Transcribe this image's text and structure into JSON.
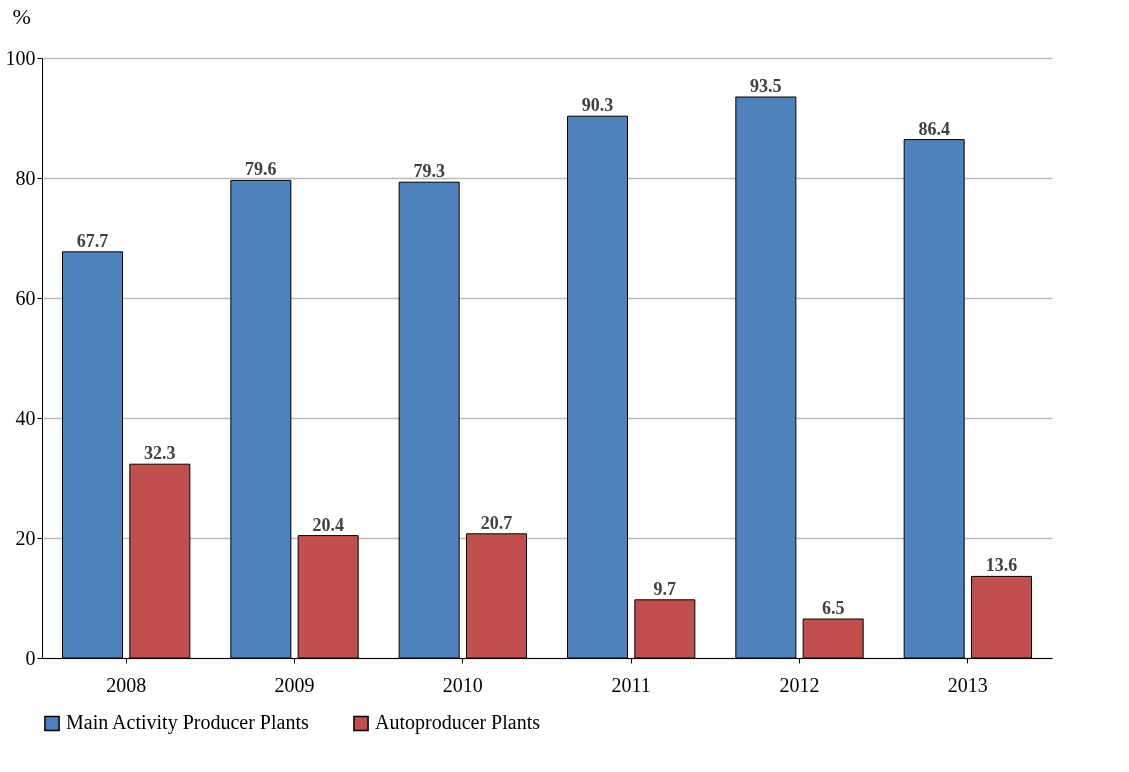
{
  "chart_data": {
    "type": "bar",
    "ylabel": "%",
    "categories": [
      "2008",
      "2009",
      "2010",
      "2011",
      "2012",
      "2013"
    ],
    "series": [
      {
        "name": "Main Activity Producer Plants",
        "color": "#4f81bd",
        "values": [
          67.7,
          79.6,
          79.3,
          90.3,
          93.5,
          86.4
        ]
      },
      {
        "name": "Autoproducer Plants",
        "color": "#c0504d",
        "values": [
          32.3,
          20.4,
          20.7,
          9.7,
          6.5,
          13.6
        ]
      }
    ],
    "ylim": [
      0,
      100
    ],
    "yticks": [
      0,
      20,
      40,
      60,
      80,
      100
    ],
    "grid": "y",
    "legend": "bottom",
    "data_labels": true
  }
}
